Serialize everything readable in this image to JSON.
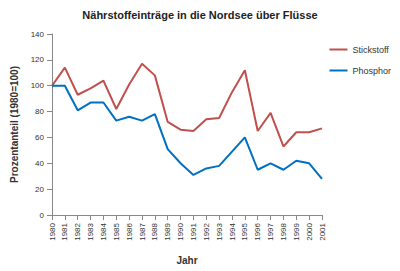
{
  "chart_data": {
    "type": "line",
    "title": "Nährstoffeinträge in die Nordsee über Flüsse",
    "x_label": "Jahr",
    "y_label": "Prozentanteil (1980=100)",
    "categories": [
      "1980",
      "1981",
      "1982",
      "1983",
      "1984",
      "1985",
      "1986",
      "1987",
      "1988",
      "1989",
      "1990",
      "1991",
      "1992",
      "1993",
      "1994",
      "1995",
      "1996",
      "1997",
      "1998",
      "1999",
      "2000",
      "2001"
    ],
    "series": [
      {
        "name": "Stickstoff",
        "color": "#c0504d",
        "values": [
          100,
          114,
          93,
          98,
          104,
          82,
          101,
          117,
          108,
          72,
          66,
          65,
          74,
          75,
          95,
          112,
          65,
          79,
          53,
          64,
          64,
          67
        ]
      },
      {
        "name": "Phosphor",
        "color": "#0070c0",
        "values": [
          100,
          100,
          81,
          87,
          87,
          73,
          76,
          73,
          78,
          51,
          40,
          31,
          36,
          38,
          49,
          60,
          35,
          40,
          35,
          42,
          40,
          28
        ]
      }
    ],
    "ylim": [
      0,
      140
    ],
    "yticks": [
      0,
      20,
      40,
      60,
      80,
      100,
      120,
      140
    ],
    "grid": false,
    "legend": "right"
  }
}
